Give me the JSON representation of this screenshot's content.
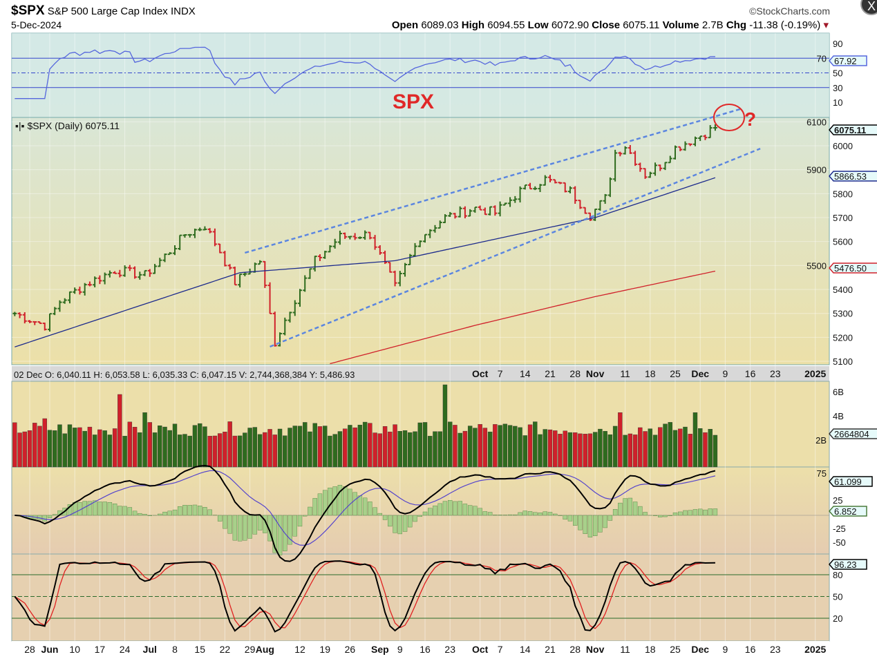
{
  "header": {
    "symbol": "$SPX",
    "name": "S&P 500 Large Cap Index",
    "exchange": "INDX",
    "date": "5-Dec-2024",
    "brand": "©StockCharts.com",
    "open_label": "Open",
    "open": "6089.03",
    "high_label": "High",
    "high": "6094.55",
    "low_label": "Low",
    "low": "6072.90",
    "close_label": "Close",
    "close": "6075.11",
    "volume_label": "Volume",
    "volume": "2.7B",
    "chg_label": "Chg",
    "chg": "-11.38 (-0.19%)",
    "close_button": "X"
  },
  "annotations": {
    "spx_label": "SPX",
    "question": "?",
    "legend": "$SPX (Daily) 6075.11"
  },
  "info_bar": "02 Dec O: 6,040.11   H: 6,053.58   L: 6,035.33   C: 6,047.15   V: 2,744,368,384   Y: 5,486.93",
  "colors": {
    "up": "#2e6b1e",
    "down": "#d0202a",
    "ma50": "#1c2a8c",
    "ma200": "#d0202a",
    "trend": "#5b86e0",
    "rsi": "#5566dd",
    "annot": "#e02828"
  },
  "chart_data": {
    "type": "ohlc",
    "start_date": "2024-05-23",
    "end_date": "2024-12-05",
    "price_closes": [
      [
        "2024-05-23",
        5300
      ],
      [
        "2024-05-31",
        5250
      ],
      [
        "2024-06-05",
        5350
      ],
      [
        "2024-06-12",
        5420
      ],
      [
        "2024-06-20",
        5480
      ],
      [
        "2024-06-28",
        5460
      ],
      [
        "2024-07-05",
        5560
      ],
      [
        "2024-07-10",
        5630
      ],
      [
        "2024-07-16",
        5665
      ],
      [
        "2024-07-19",
        5560
      ],
      [
        "2024-07-24",
        5430
      ],
      [
        "2024-07-31",
        5520
      ],
      [
        "2024-08-05",
        5180
      ],
      [
        "2024-08-08",
        5320
      ],
      [
        "2024-08-15",
        5520
      ],
      [
        "2024-08-22",
        5620
      ],
      [
        "2024-08-30",
        5630
      ],
      [
        "2024-09-06",
        5410
      ],
      [
        "2024-09-13",
        5620
      ],
      [
        "2024-09-20",
        5700
      ],
      [
        "2024-09-30",
        5740
      ],
      [
        "2024-10-04",
        5720
      ],
      [
        "2024-10-11",
        5810
      ],
      [
        "2024-10-18",
        5860
      ],
      [
        "2024-10-25",
        5810
      ],
      [
        "2024-10-31",
        5710
      ],
      [
        "2024-11-05",
        5780
      ],
      [
        "2024-11-07",
        5970
      ],
      [
        "2024-11-11",
        6000
      ],
      [
        "2024-11-15",
        5880
      ],
      [
        "2024-11-20",
        5920
      ],
      [
        "2024-11-25",
        5990
      ],
      [
        "2024-12-05",
        6075.11
      ]
    ],
    "ma50": [
      [
        "2024-05-23",
        5160
      ],
      [
        "2024-07-25",
        5470
      ],
      [
        "2024-09-06",
        5520
      ],
      [
        "2024-11-01",
        5700
      ],
      [
        "2024-12-05",
        5866.53
      ]
    ],
    "ma200": [
      [
        "2024-08-20",
        5090
      ],
      [
        "2024-09-30",
        5250
      ],
      [
        "2024-11-01",
        5370
      ],
      [
        "2024-12-05",
        5476.5
      ]
    ],
    "trendlines": [
      [
        [
          "2024-07-26",
          5553
        ],
        [
          "2024-12-12",
          6153
        ]
      ],
      [
        [
          "2024-08-02",
          5161
        ],
        [
          "2024-12-18",
          5988
        ]
      ]
    ],
    "volume_spikes_B": [
      [
        "2024-05-31",
        4
      ],
      [
        "2024-06-21",
        6
      ],
      [
        "2024-06-28",
        4.5
      ],
      [
        "2024-09-20",
        6.8
      ],
      [
        "2024-11-08",
        4.5
      ],
      [
        "2024-11-29",
        4.5
      ]
    ],
    "volume_base_B": 3,
    "price_axis": {
      "ticks": [
        5100,
        5200,
        5300,
        5400,
        5500,
        5600,
        5700,
        5800,
        5900,
        6000,
        6100
      ],
      "range": [
        5100,
        6100
      ]
    },
    "rsi_axis": {
      "ticks": [
        10,
        30,
        50,
        70,
        90
      ],
      "lines": [
        30,
        50,
        70
      ]
    },
    "volume_axis": {
      "ticks": [
        "2B",
        "4B",
        "6B"
      ]
    },
    "macd_axis": {
      "ticks": [
        "-50",
        "-25",
        "25",
        "75"
      ]
    },
    "stoch_axis": {
      "ticks": [
        20,
        50,
        80
      ]
    },
    "value_tags": {
      "price": "6075.11",
      "ma50": "5866.53",
      "ma200": "5476.50",
      "rsi": "67.92",
      "volume": "2664804",
      "macd": "61.099",
      "macd_hist": "6.852",
      "stoch": "96.23"
    },
    "x_ticks": [
      [
        "2024-05-28",
        "28"
      ],
      [
        "2024-06-03",
        "Jun",
        true
      ],
      [
        "2024-06-10",
        "10"
      ],
      [
        "2024-06-17",
        "17"
      ],
      [
        "2024-06-24",
        "24"
      ],
      [
        "2024-07-01",
        "Jul",
        true
      ],
      [
        "2024-07-08",
        "8"
      ],
      [
        "2024-07-15",
        "15"
      ],
      [
        "2024-07-22",
        "22"
      ],
      [
        "2024-07-29",
        "29"
      ],
      [
        "2024-08-01",
        "Aug",
        true
      ],
      [
        "2024-08-12",
        "12"
      ],
      [
        "2024-08-19",
        "19"
      ],
      [
        "2024-08-26",
        "26"
      ],
      [
        "2024-09-03",
        "Sep",
        true
      ],
      [
        "2024-09-09",
        "9"
      ],
      [
        "2024-09-16",
        "16"
      ],
      [
        "2024-09-23",
        "23"
      ],
      [
        "2024-10-01",
        "Oct",
        true
      ],
      [
        "2024-10-07",
        "7"
      ],
      [
        "2024-10-14",
        "14"
      ],
      [
        "2024-10-21",
        "21"
      ],
      [
        "2024-10-28",
        "28"
      ],
      [
        "2024-11-01",
        "Nov",
        true
      ],
      [
        "2024-11-11",
        "11"
      ],
      [
        "2024-11-18",
        "18"
      ],
      [
        "2024-11-25",
        "25"
      ],
      [
        "2024-12-02",
        "Dec",
        true
      ],
      [
        "2024-12-09",
        "9"
      ],
      [
        "2024-12-16",
        "16"
      ],
      [
        "2024-12-23",
        "23"
      ],
      [
        "2025-01-02",
        "2025",
        true
      ]
    ]
  }
}
